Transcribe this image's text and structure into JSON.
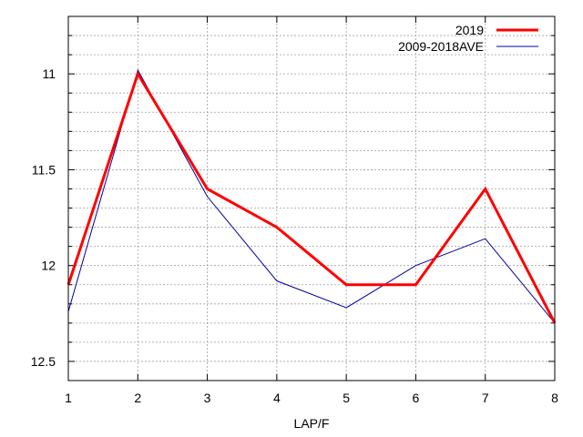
{
  "chart_data": {
    "type": "line",
    "title": "",
    "xlabel": "LAP/F",
    "ylabel": "",
    "x": [
      1,
      2,
      3,
      4,
      5,
      6,
      7,
      8
    ],
    "xlim": [
      1,
      8
    ],
    "ylim": [
      10.7,
      12.6
    ],
    "y_inverted": true,
    "x_ticks": [
      1,
      2,
      3,
      4,
      5,
      6,
      7,
      8
    ],
    "x_tick_labels": [
      "1",
      "2",
      "3",
      "4",
      "5",
      "6",
      "7",
      "8"
    ],
    "y_ticks": [
      11,
      11.5,
      12,
      12.5
    ],
    "y_tick_labels": [
      "11",
      "11.5",
      "12",
      "12.5"
    ],
    "y_minor_step": 0.1,
    "grid": true,
    "legend_position": "top-right",
    "series": [
      {
        "name": "2019",
        "color": "#ff0000",
        "values": [
          12.1,
          11.0,
          11.6,
          11.8,
          12.1,
          12.1,
          11.6,
          12.3
        ]
      },
      {
        "name": "2009-2018AVE",
        "color": "#0000a0",
        "values": [
          12.24,
          10.98,
          11.64,
          12.08,
          12.22,
          12.0,
          11.86,
          12.3
        ]
      }
    ]
  }
}
